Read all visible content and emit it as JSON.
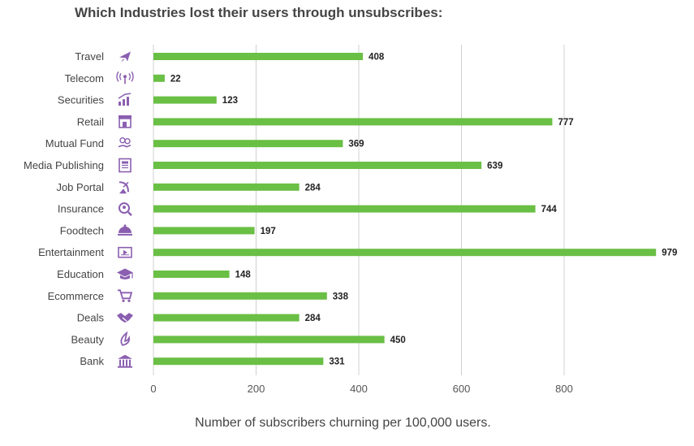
{
  "chart_data": {
    "type": "bar",
    "orientation": "horizontal",
    "title": "Which Industries lost their users through unsubscribes:",
    "xlabel": "Number of subscribers churning per 100,000 users.",
    "ylabel": "",
    "xlim": [
      0,
      980
    ],
    "xticks": [
      0,
      200,
      400,
      600,
      800
    ],
    "grid": true,
    "bar_color": "#6abf45",
    "icon_color": "#8a5fb0",
    "categories": [
      "Travel",
      "Telecom",
      "Securities",
      "Retail",
      "Mutual Fund",
      "Media Publishing",
      "Job Portal",
      "Insurance",
      "Foodtech",
      "Entertainment",
      "Education",
      "Ecommerce",
      "Deals",
      "Beauty",
      "Bank"
    ],
    "icons": [
      "airplane-icon",
      "antenna-icon",
      "growth-chart-icon",
      "storefront-icon",
      "money-hand-icon",
      "newspaper-icon",
      "satellite-dish-icon",
      "magnifier-icon",
      "food-cloche-icon",
      "media-player-icon",
      "graduation-cap-icon",
      "shopping-cart-icon",
      "handshake-icon",
      "flame-leaf-icon",
      "bank-building-icon"
    ],
    "values": [
      408,
      22,
      123,
      777,
      369,
      639,
      284,
      744,
      197,
      979,
      148,
      338,
      284,
      450,
      331
    ]
  }
}
